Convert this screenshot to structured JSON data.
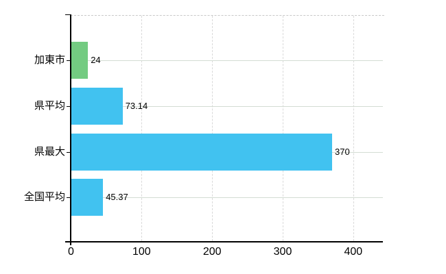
{
  "chart_data": {
    "type": "bar",
    "orientation": "horizontal",
    "categories": [
      "加東市",
      "県平均",
      "県最大",
      "全国平均"
    ],
    "values": [
      24,
      73.14,
      370,
      45.37
    ],
    "value_labels": [
      "24",
      "73.14",
      "370",
      "45.37"
    ],
    "bar_colors": [
      "#73cb81",
      "#41c2f0",
      "#41c2f0",
      "#41c2f0"
    ],
    "x_ticks": [
      0,
      100,
      200,
      300,
      400
    ],
    "x_tick_labels": [
      "0",
      "100",
      "200",
      "300",
      "400"
    ],
    "xlim": [
      0,
      442
    ],
    "grid": {
      "vertical": "dashed",
      "horizontal": "solid"
    },
    "gridline_color_vertical": "#d9d9d9",
    "gridline_color_horizontal": "#d3dcd3",
    "axis_color": "#000000",
    "background": "#ffffff",
    "legend": "none"
  }
}
